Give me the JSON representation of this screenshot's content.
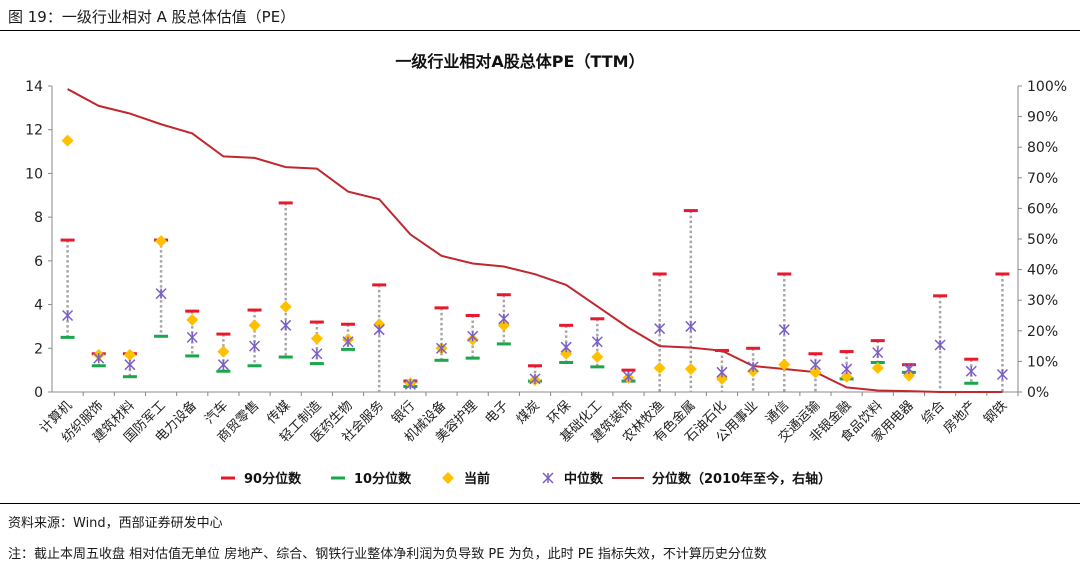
{
  "figure_title": "图 19：一级行业相对 A 股总体估值（PE）",
  "source_text": "资料来源：Wind，西部证券研发中心",
  "note_text": "注：截止本周五收盘 相对估值无单位 房地产、综合、钢铁行业整体净利润为负导致 PE 为负，此时 PE 指标失效，不计算历史分位数",
  "colors": {
    "p90": "#e8192c",
    "p10": "#1aa64a",
    "current": "#ffc000",
    "median": "#7b5fc7",
    "percentile": "#c0282d",
    "range": "#a6a6a6"
  },
  "chart_data": {
    "type": "line",
    "title": "一级行业相对A股总体PE（TTM）",
    "categories": [
      "计算机",
      "纺织服饰",
      "建筑材料",
      "国防军工",
      "电力设备",
      "汽车",
      "商贸零售",
      "传媒",
      "轻工制造",
      "医药生物",
      "社会服务",
      "银行",
      "机械设备",
      "美容护理",
      "电子",
      "煤炭",
      "环保",
      "基础化工",
      "建筑装饰",
      "农林牧渔",
      "有色金属",
      "石油石化",
      "公用事业",
      "通信",
      "交通运输",
      "非银金融",
      "食品饮料",
      "家用电器",
      "综合",
      "房地产",
      "钢铁"
    ],
    "ylim_left": [
      0,
      14
    ],
    "yticks_left": [
      0,
      2,
      4,
      6,
      8,
      10,
      12,
      14
    ],
    "ylim_right": [
      0,
      100
    ],
    "yticks_right": [
      "0%",
      "10%",
      "20%",
      "30%",
      "40%",
      "50%",
      "60%",
      "70%",
      "80%",
      "90%",
      "100%"
    ],
    "series": [
      {
        "name": "90分位数",
        "marker": "dash",
        "values": [
          6.95,
          1.75,
          1.75,
          6.95,
          3.7,
          2.65,
          3.75,
          8.65,
          3.2,
          3.1,
          4.9,
          0.5,
          3.85,
          3.5,
          4.45,
          1.2,
          3.05,
          3.35,
          1.0,
          5.4,
          8.3,
          1.9,
          2.0,
          5.4,
          1.75,
          1.85,
          2.35,
          1.25,
          4.4,
          1.5,
          5.4
        ]
      },
      {
        "name": "10分位数",
        "marker": "dash",
        "values": [
          2.5,
          1.2,
          0.7,
          2.55,
          1.65,
          0.95,
          1.2,
          1.6,
          1.3,
          1.95,
          null,
          0.25,
          1.45,
          1.55,
          2.2,
          0.5,
          1.35,
          1.15,
          0.5,
          null,
          null,
          null,
          null,
          null,
          null,
          0.6,
          1.35,
          0.9,
          null,
          0.4,
          null
        ]
      },
      {
        "name": "当前",
        "marker": "diamond",
        "values": [
          11.5,
          1.7,
          1.7,
          6.9,
          3.3,
          1.85,
          3.05,
          3.9,
          2.45,
          2.4,
          3.1,
          0.4,
          2.0,
          2.4,
          3.05,
          0.55,
          1.75,
          1.6,
          0.65,
          1.1,
          1.05,
          0.6,
          0.95,
          1.25,
          0.9,
          0.7,
          1.1,
          0.75,
          null,
          null,
          null
        ]
      },
      {
        "name": "中位数",
        "marker": "x",
        "values": [
          3.5,
          1.55,
          1.25,
          4.5,
          2.5,
          1.25,
          2.1,
          3.05,
          1.75,
          2.3,
          2.85,
          0.35,
          2.0,
          2.55,
          3.35,
          0.6,
          2.05,
          2.3,
          0.7,
          2.9,
          3.0,
          0.9,
          1.15,
          2.85,
          1.25,
          1.05,
          1.8,
          1.05,
          2.15,
          0.95,
          0.8
        ]
      },
      {
        "name": "分位数（2010年至今，右轴）",
        "marker": "line",
        "axis": "right",
        "values": [
          99,
          93.5,
          91,
          87.5,
          84.5,
          77,
          76.5,
          73.5,
          73,
          65.5,
          63,
          51.5,
          44.5,
          42,
          41,
          38.5,
          35,
          28,
          21,
          15,
          14.5,
          13.5,
          8.5,
          7.5,
          6.5,
          1.5,
          0.5,
          0.3,
          0,
          0,
          0
        ]
      }
    ],
    "legend": [
      "90分位数",
      "10分位数",
      "当前",
      "中位数",
      "分位数（2010年至今，右轴）"
    ],
    "legend_position": "bottom"
  }
}
